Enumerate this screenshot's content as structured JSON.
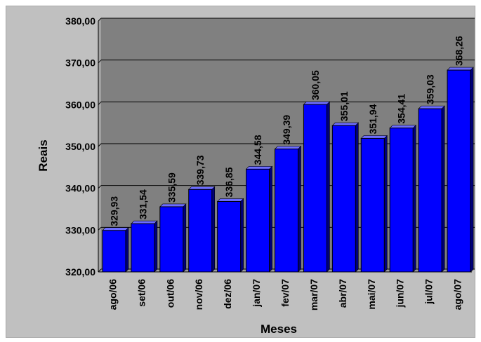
{
  "chart_data": {
    "type": "bar",
    "title": "",
    "xlabel": "Meses",
    "ylabel": "Reais",
    "ylim": [
      320,
      380
    ],
    "yticks": [
      320,
      330,
      340,
      350,
      360,
      370,
      380
    ],
    "ytick_labels": [
      "320,00",
      "330,00",
      "340,00",
      "350,00",
      "360,00",
      "370,00",
      "380,00"
    ],
    "grid": "horizontal",
    "legend": "none",
    "categories": [
      "ago/06",
      "set/06",
      "out/06",
      "nov/06",
      "dez/06",
      "jan/07",
      "fev/07",
      "mar/07",
      "abr/07",
      "mai/07",
      "jun/07",
      "jul/07",
      "ago/07"
    ],
    "values": [
      329.93,
      331.54,
      335.59,
      339.73,
      336.85,
      344.58,
      349.39,
      360.05,
      355.01,
      351.94,
      354.41,
      359.03,
      368.26
    ],
    "value_labels": [
      "329,93",
      "331,54",
      "335,59",
      "339,73",
      "336,85",
      "344,58",
      "349,39",
      "360,05",
      "355,01",
      "351,94",
      "354,41",
      "359,03",
      "368,26"
    ],
    "colors": {
      "bar_face": "#0000ff",
      "bar_side": "#00007a",
      "bar_top": "#6d6dff",
      "plot_background": "#808080",
      "chart_background": "#c0c0c0",
      "gridline": "#000000"
    }
  }
}
